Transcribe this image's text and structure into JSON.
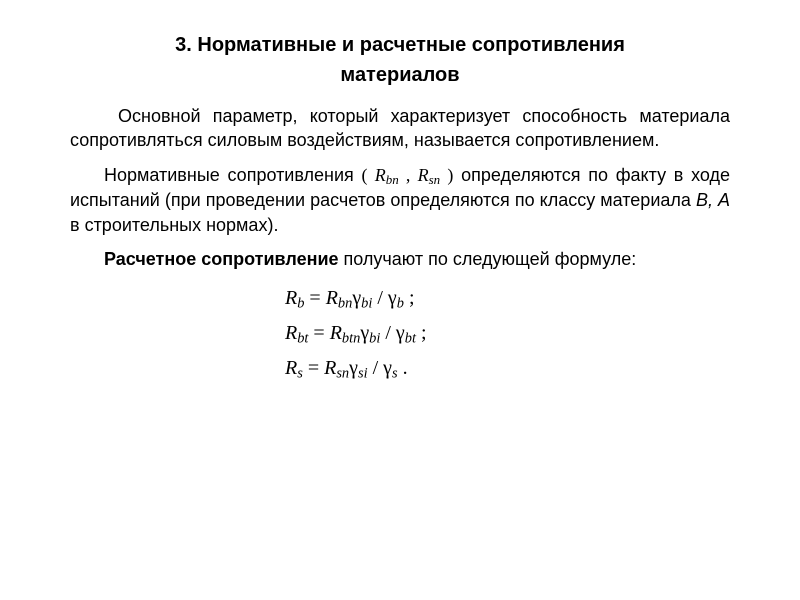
{
  "heading_line1": "3. Нормативные и расчетные сопротивления",
  "heading_line2": "материалов",
  "para1": "Основной параметр, который характеризует способ­ность материала сопротивляться силовым воздействиям, называется сопротивлением.",
  "para2a": "Нормативные сопротивления ",
  "inline_open": "( ",
  "inline_R1": "R",
  "inline_sub1": "bn",
  "inline_comma": " , ",
  "inline_R2": "R",
  "inline_sub2": "sn",
  "inline_close": " )",
  "para2b": " определяются по факту в ходе испытаний (при проведении расчетов определяются по классу материала ",
  "classes": "В, А",
  "para2c": " в строительных нормах).",
  "para3a": "Расчетное сопротивление",
  "para3b": " получают по следующей формуле:",
  "f1": {
    "lhs_R": "R",
    "lhs_sub": "b",
    "eq": " = ",
    "r_R": "R",
    "r_sub": "bn",
    "g1": "γ",
    "g1_sub": "bi",
    "slash": " / ",
    "g2": "γ",
    "g2_sub": "b",
    "end": " ;"
  },
  "f2": {
    "lhs_R": "R",
    "lhs_sub": "bt",
    "eq": " = ",
    "r_R": "R",
    "r_sub": "btn",
    "g1": "γ",
    "g1_sub": "bi",
    "slash": " / ",
    "g2": "γ",
    "g2_sub": "bt",
    "end": " ;"
  },
  "f3": {
    "lhs_R": "R",
    "lhs_sub": "s",
    "eq": " = ",
    "r_R": "R",
    "r_sub": "sn",
    "g1": "γ",
    "g1_sub": "si",
    "slash": " / ",
    "g2": "γ",
    "g2_sub": "s",
    "end": " ."
  },
  "colors": {
    "background": "#ffffff",
    "text": "#000000"
  },
  "typography": {
    "body_family": "Arial",
    "math_family": "Times New Roman",
    "heading_fontsize_pt": 15,
    "body_fontsize_pt": 14,
    "formula_fontsize_pt": 15
  }
}
